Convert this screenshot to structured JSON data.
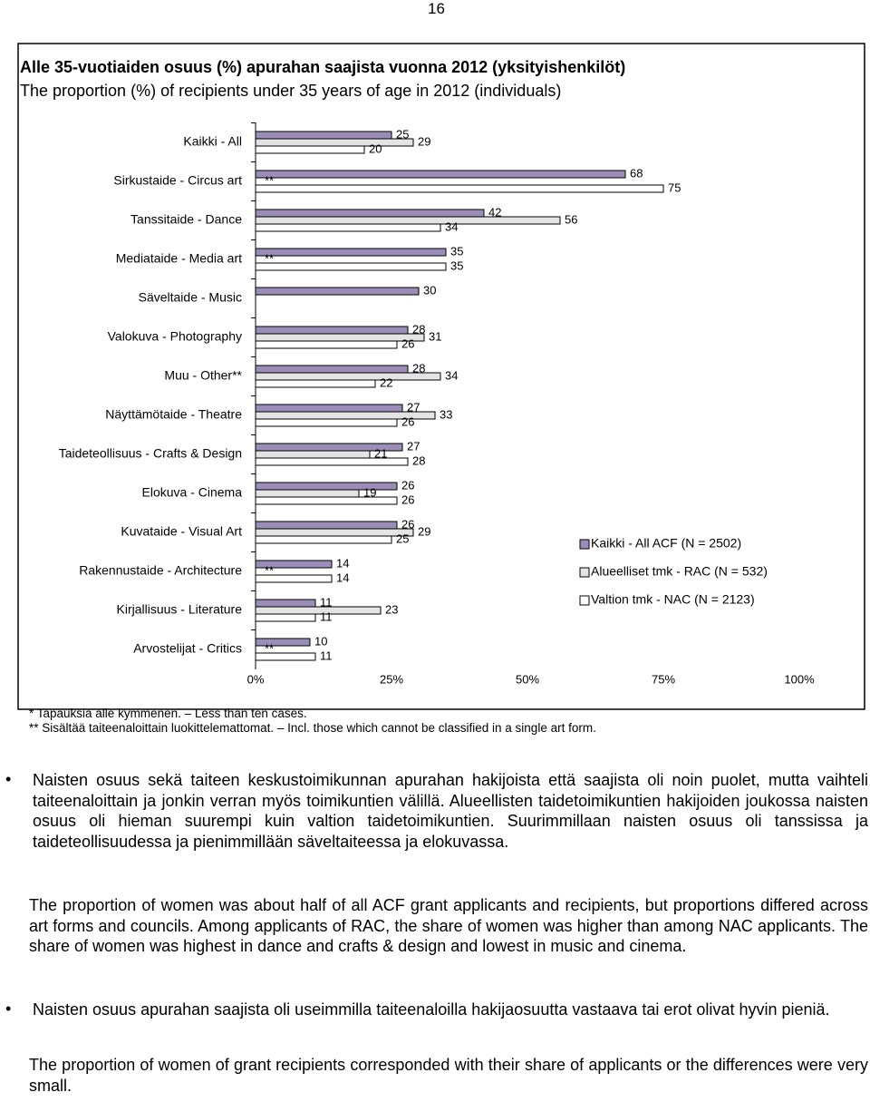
{
  "page_number": "16",
  "chart_data": {
    "type": "bar",
    "orientation": "horizontal",
    "title": "Alle 35-vuotiaiden osuus (%) apurahan saajista vuonna 2012 (yksityishenkilöt)",
    "subtitle": "The proportion (%) of recipients under 35 years of age in 2012 (individuals)",
    "categories": [
      "Kaikki  - All",
      "Sirkustaide - Circus art",
      "Tanssitaide - Dance",
      "Mediataide - Media art",
      "Säveltaide - Music",
      "Valokuva - Photography",
      "Muu - Other**",
      "Näyttämötaide - Theatre",
      "Taideteollisuus - Crafts & Design",
      "Elokuva - Cinema",
      "Kuvataide - Visual Art",
      "Rakennustaide - Architecture",
      "Kirjallisuus - Literature",
      "Arvostelijat - Critics"
    ],
    "series": [
      {
        "name": "Kaikki - All ACF (N = 2502)",
        "color": "#9a8eb8",
        "values": [
          25,
          68,
          42,
          35,
          30,
          28,
          28,
          27,
          27,
          26,
          26,
          14,
          11,
          10
        ]
      },
      {
        "name": "Alueelliset tmk - RAC (N = 532)",
        "color": "#e4e4e4",
        "values": [
          29,
          null,
          56,
          null,
          null,
          31,
          34,
          33,
          21,
          19,
          29,
          null,
          23,
          null
        ],
        "value_labels": [
          null,
          "**",
          null,
          "**",
          null,
          null,
          null,
          null,
          null,
          null,
          null,
          "**",
          null,
          "**"
        ]
      },
      {
        "name": "Valtion tmk  - NAC (N = 2123)",
        "color": "#ffffff",
        "values": [
          20,
          75,
          34,
          35,
          null,
          26,
          22,
          26,
          28,
          26,
          25,
          14,
          11,
          11
        ]
      }
    ],
    "xlim": [
      0,
      100
    ],
    "xticks": [
      {
        "value": 0,
        "label": "0%"
      },
      {
        "value": 25,
        "label": "25%"
      },
      {
        "value": 50,
        "label": "50%"
      },
      {
        "value": 75,
        "label": "75%"
      },
      {
        "value": 100,
        "label": "100%"
      }
    ],
    "legend": "lower right"
  },
  "footnotes": [
    "* Tapauksia alle kymmenen. – Less than ten cases.",
    "** Sisältää taiteenaloittain luokittelemattomat. – Incl. those which cannot be classified in a single art form."
  ],
  "paragraphs": [
    {
      "bullet": true,
      "text": "Naisten osuus sekä taiteen keskustoimikunnan apurahan hakijoista että saajista oli noin puolet, mutta vaihteli taiteenaloittain ja jonkin verran myös toimikuntien välillä. Alueellisten taidetoimikuntien hakijoiden joukossa naisten osuus oli hieman suurempi kuin valtion taidetoimikuntien. Suurimmillaan naisten osuus oli tanssissa ja taideteollisuudessa ja pienimmillään säveltaiteessa ja elokuvassa."
    },
    {
      "bullet": false,
      "text": "The proportion of women was about half of all ACF grant applicants and recipients, but proportions differed across art forms and councils. Among applicants of RAC, the share of women was higher than among NAC applicants. The share of women was highest in dance and crafts & design and lowest in music and cinema."
    },
    {
      "bullet": true,
      "text": "Naisten osuus apurahan saajista oli useimmilla taiteenaloilla hakijaosuutta vastaava tai erot olivat hyvin pieniä."
    },
    {
      "bullet": false,
      "text": "The proportion of women of grant recipients corresponded with their share of applicants or the differences were very small."
    }
  ]
}
